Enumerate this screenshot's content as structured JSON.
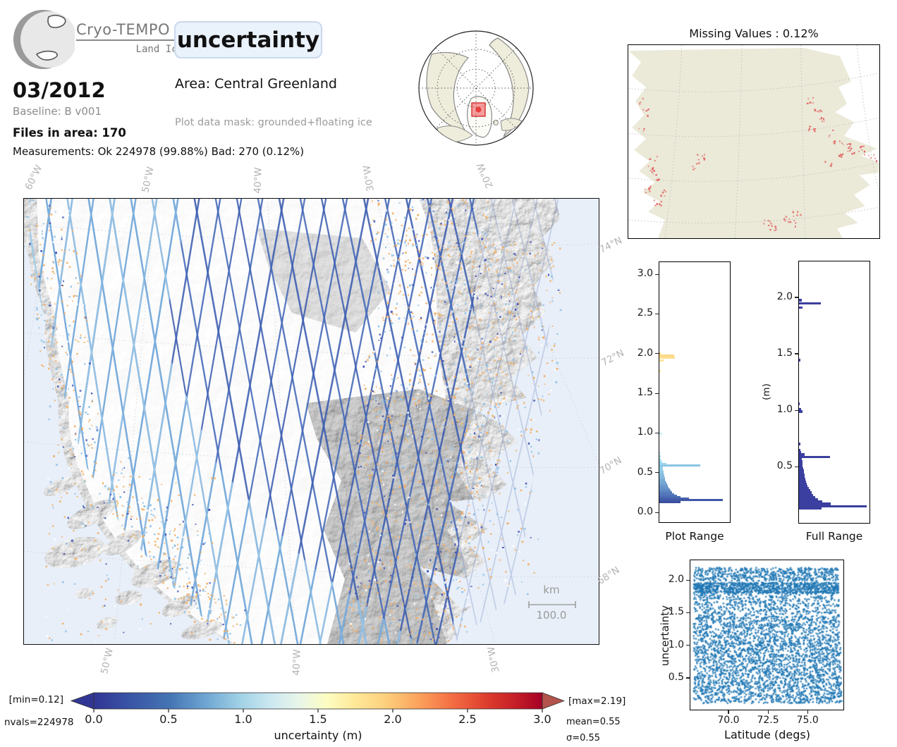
{
  "header": {
    "logo_title": "Cryo-TEMPO",
    "logo_subtitle": "Land Ice",
    "badge": "uncertainty",
    "date": "03/2012",
    "baseline": "Baseline: B v001",
    "files": "Files in area: 170",
    "measurements": "Measurements: Ok 224978 (99.88%) Bad: 270 (0.12%)",
    "area": "Area: Central Greenland",
    "mask": "Plot data mask: grounded+floating ice"
  },
  "missing_map": {
    "title": "Missing Values : 0.12%"
  },
  "main_map": {
    "top_labels": [
      "60°W",
      "50°W",
      "40°W",
      "30°W",
      "20°W"
    ],
    "bottom_labels": [
      "50°W",
      "40°W",
      "30°W"
    ],
    "right_labels": [
      "74°N",
      "72°N",
      "70°N",
      "68°N"
    ],
    "scalebar_unit": "km",
    "scalebar_length": "100.0"
  },
  "chart_data": [
    {
      "id": "plot_range_hist",
      "type": "bar",
      "orientation": "horizontal",
      "axis_label": "Plot Range",
      "ylim": [
        -0.133,
        3.16
      ],
      "yticks": [
        "0.0",
        "0.5",
        "1.0",
        "1.5",
        "2.0",
        "2.5",
        "3.0"
      ],
      "bars": [
        [
          0.125,
          0.3,
          "#3b4fa0"
        ],
        [
          0.145,
          0.91,
          "#3f57a6"
        ],
        [
          0.165,
          0.42,
          "#445fab"
        ],
        [
          0.185,
          0.3,
          "#4967b0"
        ],
        [
          0.205,
          0.25,
          "#4e6fb5"
        ],
        [
          0.225,
          0.21,
          "#5377b9"
        ],
        [
          0.245,
          0.185,
          "#587ebd"
        ],
        [
          0.265,
          0.165,
          "#5d85c1"
        ],
        [
          0.285,
          0.15,
          "#628cc5"
        ],
        [
          0.305,
          0.135,
          "#6793c9"
        ],
        [
          0.325,
          0.12,
          "#6b99cc"
        ],
        [
          0.345,
          0.11,
          "#6f9fcf"
        ],
        [
          0.365,
          0.1,
          "#73a5d2"
        ],
        [
          0.385,
          0.09,
          "#77aad5"
        ],
        [
          0.405,
          0.085,
          "#7bafd8"
        ],
        [
          0.425,
          0.08,
          "#7eb4da"
        ],
        [
          0.445,
          0.075,
          "#82b9dd"
        ],
        [
          0.465,
          0.07,
          "#85bddf"
        ],
        [
          0.485,
          0.065,
          "#88c1e1"
        ],
        [
          0.505,
          0.06,
          "#8bc5e3"
        ],
        [
          0.525,
          0.055,
          "#8ec9e5"
        ],
        [
          0.545,
          0.05,
          "#91cde7"
        ],
        [
          0.565,
          0.048,
          "#94d0e9"
        ],
        [
          0.585,
          0.59,
          "#8ac4e4"
        ],
        [
          0.605,
          0.1,
          "#97d3ea"
        ],
        [
          0.625,
          0.035,
          "#9ad6ec"
        ],
        [
          0.645,
          0.025,
          "#9ed9ed"
        ],
        [
          0.665,
          0.02,
          "#a2dcee"
        ],
        [
          0.7,
          0.015,
          "#a8dfef"
        ],
        [
          0.75,
          0.01,
          "#b2e3f0"
        ],
        [
          0.99,
          0.035,
          "#cfeef2"
        ],
        [
          1.01,
          0.02,
          "#d4f0f0"
        ],
        [
          1.4,
          0.012,
          "#f6fbd7"
        ],
        [
          1.79,
          0.018,
          "#ffeaa2"
        ],
        [
          1.92,
          0.06,
          "#fee295"
        ],
        [
          1.955,
          0.225,
          "#fede8d"
        ],
        [
          1.985,
          0.215,
          "#fdd986"
        ],
        [
          2.01,
          0.02,
          "#fcd680"
        ]
      ]
    },
    {
      "id": "full_range_hist",
      "type": "bar",
      "orientation": "horizontal",
      "axis_label": "Full Range",
      "ylabel": "(m)",
      "color": "#3b3f9f",
      "ylim": [
        -0.005,
        2.324
      ],
      "yticks": [
        "0.5",
        "1.0",
        "1.5",
        "2.0"
      ],
      "bars": [
        [
          0.125,
          0.32
        ],
        [
          0.145,
          0.97
        ],
        [
          0.165,
          0.45
        ],
        [
          0.185,
          0.33
        ],
        [
          0.205,
          0.27
        ],
        [
          0.225,
          0.23
        ],
        [
          0.245,
          0.2
        ],
        [
          0.265,
          0.18
        ],
        [
          0.285,
          0.16
        ],
        [
          0.305,
          0.14
        ],
        [
          0.325,
          0.125
        ],
        [
          0.345,
          0.112
        ],
        [
          0.365,
          0.1
        ],
        [
          0.385,
          0.092
        ],
        [
          0.405,
          0.085
        ],
        [
          0.425,
          0.078
        ],
        [
          0.445,
          0.072
        ],
        [
          0.465,
          0.066
        ],
        [
          0.485,
          0.06
        ],
        [
          0.505,
          0.055
        ],
        [
          0.525,
          0.05
        ],
        [
          0.545,
          0.046
        ],
        [
          0.565,
          0.042
        ],
        [
          0.585,
          0.44
        ],
        [
          0.605,
          0.08
        ],
        [
          0.625,
          0.03
        ],
        [
          0.645,
          0.022
        ],
        [
          0.7,
          0.015
        ],
        [
          0.99,
          0.05
        ],
        [
          1.01,
          0.025
        ],
        [
          1.06,
          0.012
        ],
        [
          1.45,
          0.018
        ],
        [
          1.92,
          0.055
        ],
        [
          1.955,
          0.31
        ],
        [
          1.985,
          0.04
        ]
      ]
    },
    {
      "id": "latitude_scatter",
      "type": "scatter",
      "xlabel": "Latitude (degs)",
      "ylabel": "uncertainty",
      "xlim": [
        67.55,
        77.31
      ],
      "ylim": [
        0.003,
        2.314
      ],
      "xticks": [
        "70.0",
        "72.5",
        "75.0"
      ],
      "yticks": [
        "0.5",
        "1.0",
        "1.5",
        "2.0"
      ],
      "point_color": "#1f77b4",
      "bands": [
        [
          0.1,
          1.45,
          3000
        ],
        [
          1.45,
          1.62,
          260
        ],
        [
          1.62,
          1.8,
          300
        ],
        [
          1.8,
          1.97,
          950
        ],
        [
          1.99,
          2.2,
          560
        ]
      ]
    },
    {
      "id": "colorbar",
      "type": "colorbar",
      "label": "uncertainty (m)",
      "vmin": 0,
      "vmax": 3,
      "ticks": [
        "0.0",
        "0.5",
        "1.0",
        "1.5",
        "2.0",
        "2.5",
        "3.0"
      ],
      "under": "#313695",
      "over": "#b2544c",
      "gradient": [
        [
          0.0,
          "#313695"
        ],
        [
          0.08,
          "#3954a5"
        ],
        [
          0.17,
          "#4575b4"
        ],
        [
          0.25,
          "#6ea6d2"
        ],
        [
          0.33,
          "#a3d3e6"
        ],
        [
          0.4,
          "#cfe9f1"
        ],
        [
          0.46,
          "#e9f6e8"
        ],
        [
          0.52,
          "#fdfdc2"
        ],
        [
          0.58,
          "#fee999"
        ],
        [
          0.65,
          "#fdd07e"
        ],
        [
          0.72,
          "#fca55d"
        ],
        [
          0.8,
          "#f46d43"
        ],
        [
          0.88,
          "#dc3b2c"
        ],
        [
          0.95,
          "#c01a27"
        ],
        [
          1.0,
          "#a50026"
        ]
      ],
      "annotations": {
        "min": "[min=0.12]",
        "max": "[max=2.19]",
        "nvals": "nvals=224978",
        "mean": "mean=0.55",
        "sigma": "σ=0.55"
      }
    }
  ]
}
